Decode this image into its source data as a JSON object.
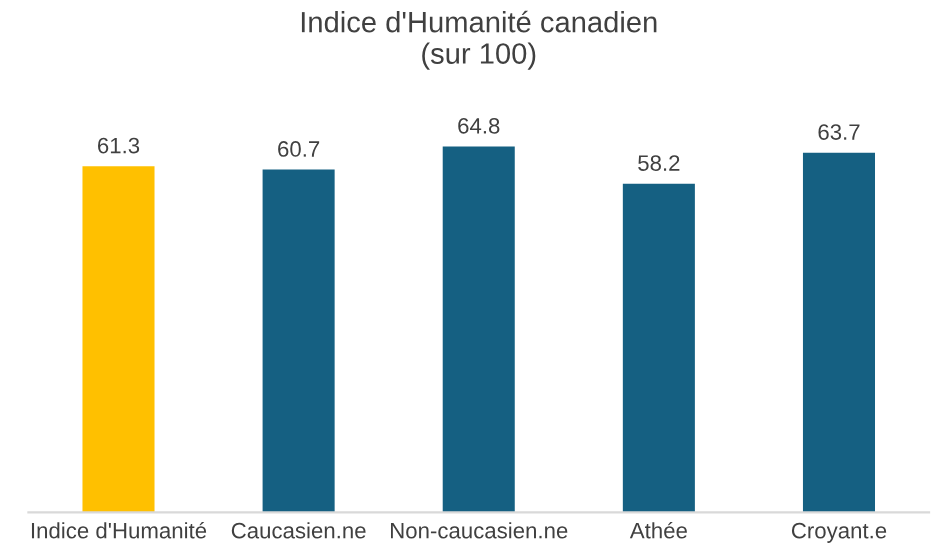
{
  "chart_data": {
    "type": "bar",
    "title": "Indice d'Humanité canadien\n(sur 100)",
    "categories": [
      "Indice d'Humanité",
      "Caucasien.ne",
      "Non-caucasien.ne",
      "Athée",
      "Croyant.e"
    ],
    "values": [
      61.3,
      60.7,
      64.8,
      58.2,
      63.7
    ],
    "colors": [
      "#ffc000",
      "#156082",
      "#156082",
      "#156082",
      "#156082"
    ],
    "data_labels": true,
    "grid": false,
    "legend": false,
    "tick_labels": "x"
  }
}
